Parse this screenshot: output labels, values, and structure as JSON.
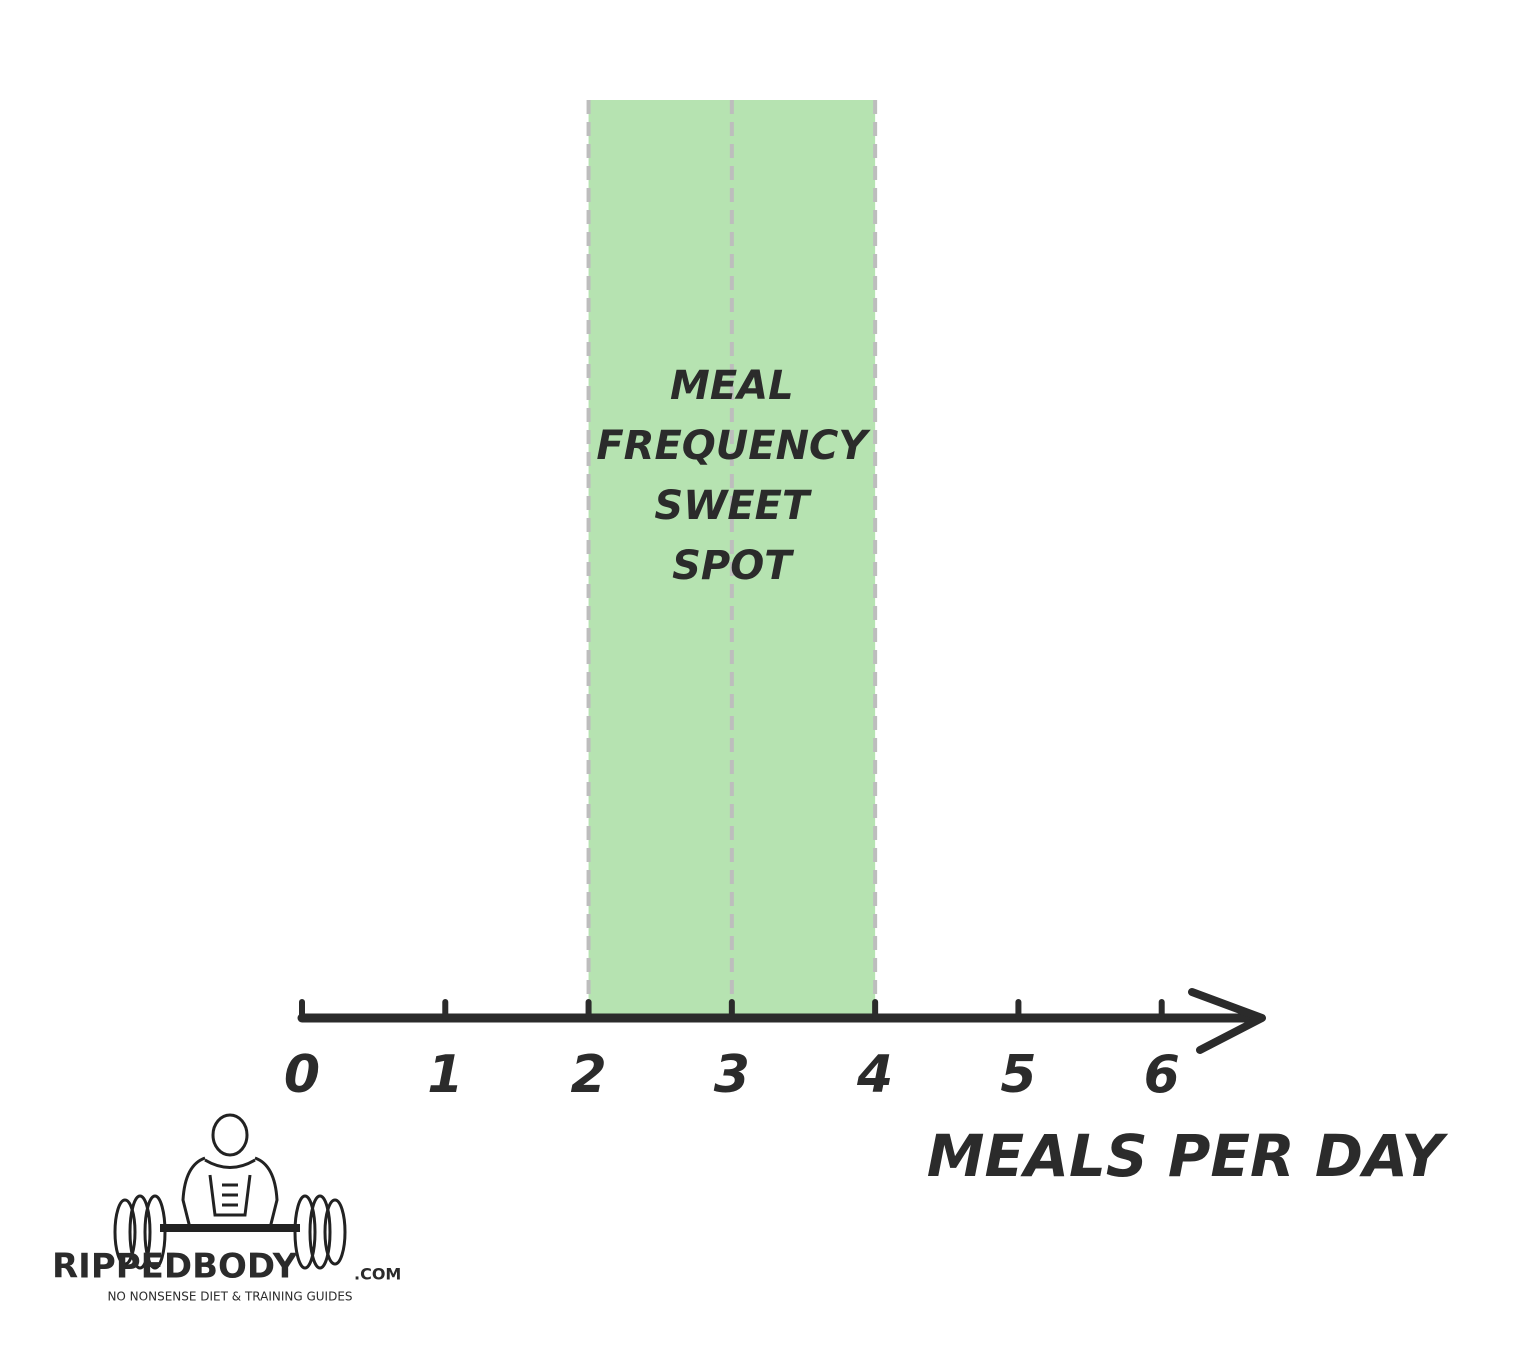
{
  "chart_data": {
    "type": "number-line",
    "xlabel": "MEALS PER DAY",
    "xlim": [
      0,
      6.7
    ],
    "xticks": [
      0,
      1,
      2,
      3,
      4,
      5,
      6
    ],
    "band": [
      2,
      4
    ],
    "band_color": "#b6e3b1",
    "reference_lines": [
      2,
      3,
      4
    ],
    "annotation": [
      "MEAL",
      "FREQUENCY",
      "SWEET",
      "SPOT"
    ]
  },
  "logo": {
    "name": "RIPPEDBODY",
    "suffix": ".COM",
    "tagline": "NO NONSENSE DIET & TRAINING GUIDES"
  }
}
